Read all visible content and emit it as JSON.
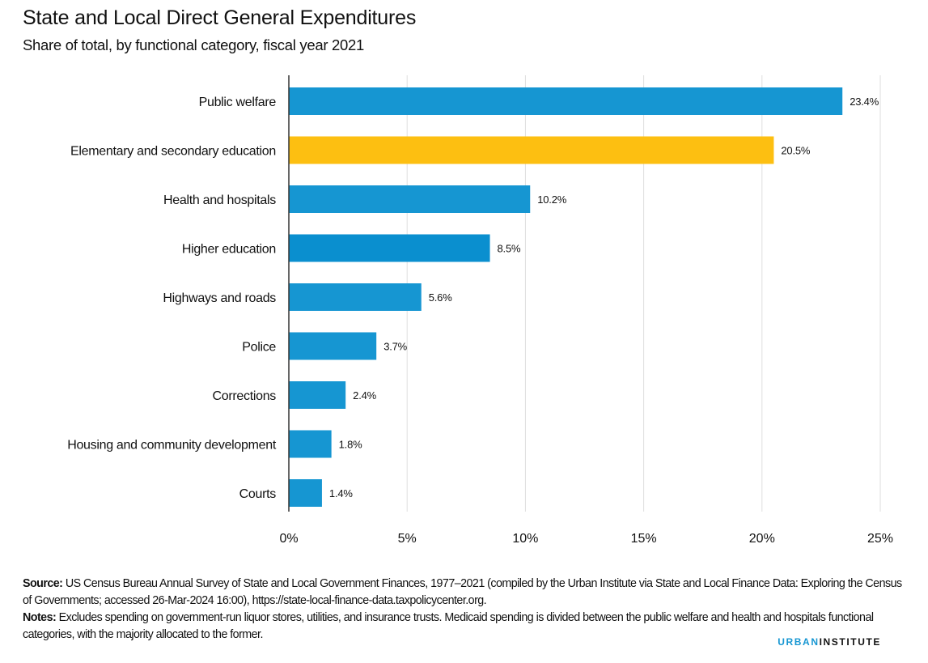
{
  "chart_data": {
    "type": "bar",
    "orientation": "horizontal",
    "title": "State and Local Direct General Expenditures",
    "subtitle": "Share of total, by functional category, fiscal year 2021",
    "categories": [
      "Public welfare",
      "Elementary and secondary education",
      "Health and hospitals",
      "Higher education",
      "Highways and roads",
      "Police",
      "Corrections",
      "Housing and community development",
      "Courts"
    ],
    "values": [
      23.4,
      20.5,
      10.2,
      8.5,
      5.6,
      3.7,
      2.4,
      1.8,
      1.4
    ],
    "value_labels": [
      "23.4%",
      "20.5%",
      "10.2%",
      "8.5%",
      "5.6%",
      "3.7%",
      "2.4%",
      "1.8%",
      "1.4%"
    ],
    "highlight_index": 1,
    "colors": {
      "default": "#1696d2",
      "highlight": "#fdbf11",
      "higher_education": "#0a8fcf"
    },
    "xlabel": "",
    "ylabel": "",
    "xlim": [
      0,
      25
    ],
    "xticks": [
      0,
      5,
      10,
      15,
      20,
      25
    ],
    "xtick_labels": [
      "0%",
      "5%",
      "10%",
      "15%",
      "20%",
      "25%"
    ],
    "grid": true,
    "legend": "none"
  },
  "footer": {
    "source_label": "Source:",
    "source_text": " US Census Bureau Annual Survey of State and Local Government Finances, 1977–2021 (compiled by the Urban Institute via State and Local Finance Data: Exploring the Census of Governments; accessed 26-Mar-2024 16:00), https://state-local-finance-data.taxpolicycenter.org.",
    "notes_label": "Notes:",
    "notes_text": " Excludes spending on government-run liquor stores, utilities, and insurance trusts. Medicaid spending is divided between the public welfare and health and hospitals functional categories, with the majority allocated to the former."
  },
  "brand": {
    "part1": "URBAN",
    "part2": "INSTITUTE"
  }
}
